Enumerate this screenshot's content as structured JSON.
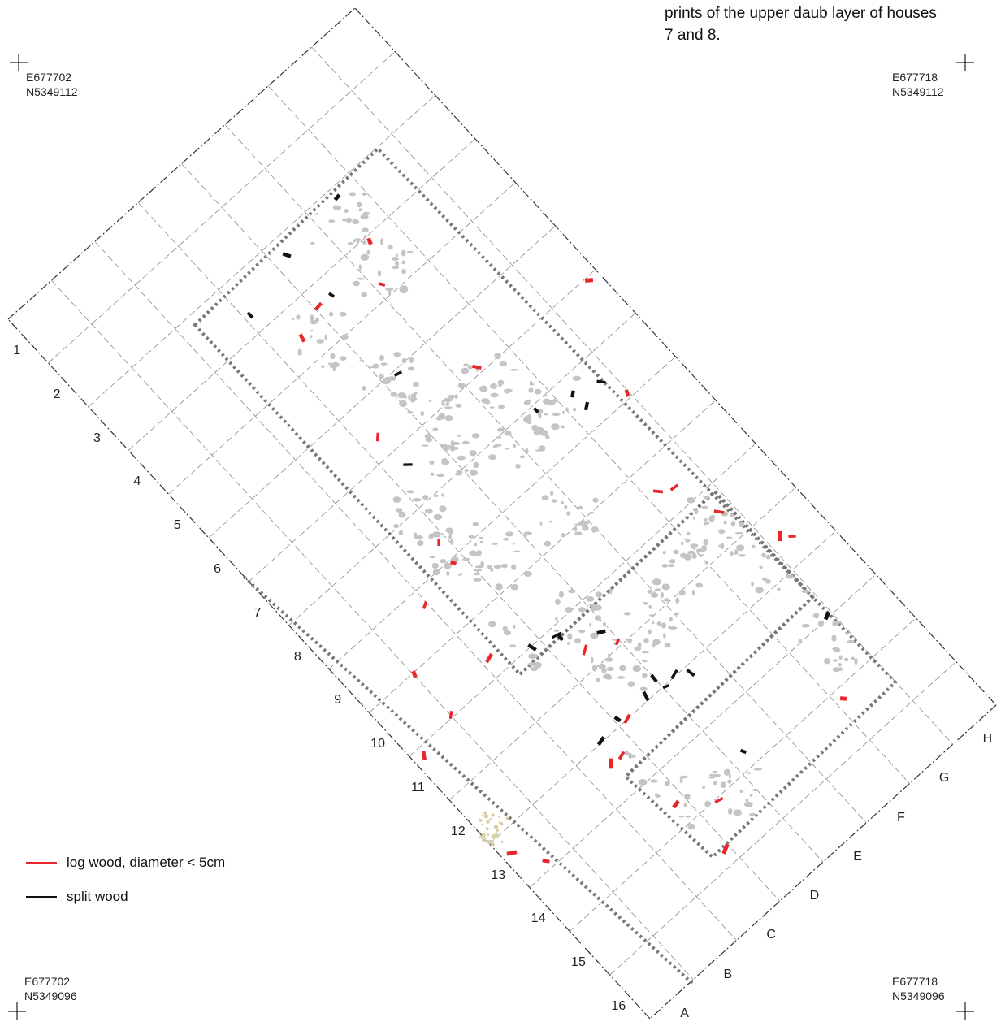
{
  "caption": {
    "line1": "prints of the upper daub layer of houses",
    "line2": "7 and 8."
  },
  "corners": {
    "top_left": {
      "easting": "E677702",
      "northing": "N5349112"
    },
    "top_right": {
      "easting": "E677718",
      "northing": "N5349112"
    },
    "bottom_left": {
      "easting": "E677702",
      "northing": "N5349096"
    },
    "bottom_right": {
      "easting": "E677718",
      "northing": "N5349096"
    }
  },
  "legend": {
    "log_wood": {
      "label": "log wood, diameter < 5cm",
      "color": "#e8262b"
    },
    "split_wood": {
      "label": "split wood",
      "color": "#111111"
    }
  },
  "grid": {
    "rows": [
      "1",
      "2",
      "3",
      "4",
      "5",
      "6",
      "7",
      "8",
      "9",
      "10",
      "11",
      "12",
      "13",
      "14",
      "15",
      "16"
    ],
    "columns": [
      "A",
      "B",
      "C",
      "D",
      "E",
      "F",
      "G",
      "H"
    ]
  },
  "colors": {
    "daub": "#c4c4c4",
    "sand_patch": "#d8cfa8",
    "grid_line": "#8a8a8a",
    "house_outline": "#777777"
  }
}
